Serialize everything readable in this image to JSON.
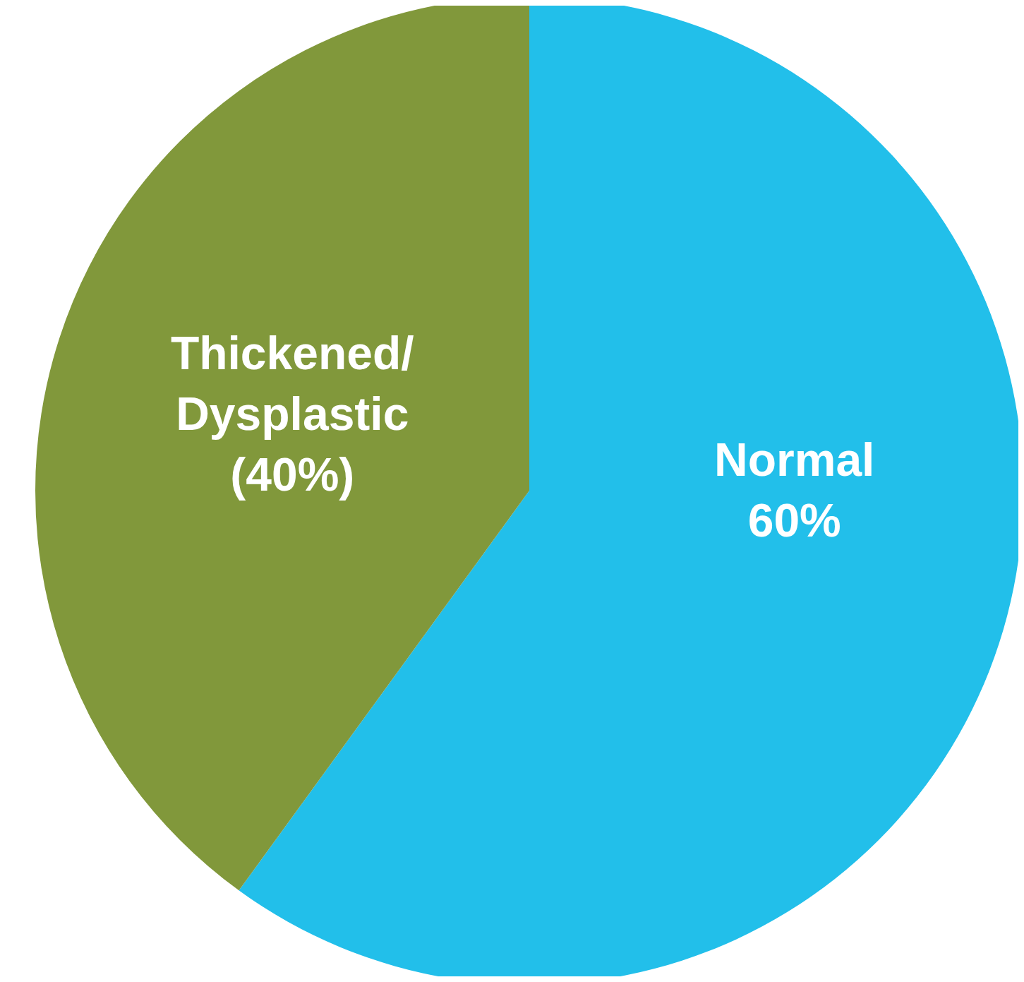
{
  "chart_data": {
    "type": "pie",
    "categories": [
      "Normal",
      "Thickened/\nDysplastic"
    ],
    "values": [
      60,
      40
    ],
    "value_labels": [
      "60%",
      "(40%)"
    ],
    "colors": [
      "#22bfea",
      "#81983b"
    ],
    "legend": false
  }
}
